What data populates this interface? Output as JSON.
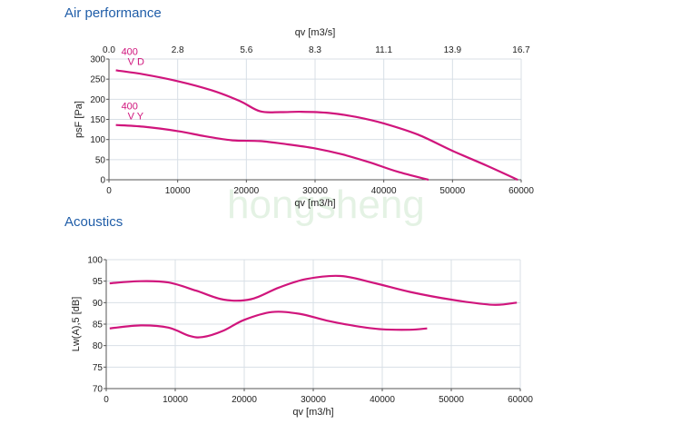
{
  "titles": {
    "air": "Air performance",
    "acoustics": "Acoustics"
  },
  "watermark": "hongsheng",
  "colors": {
    "curve": "#d0157c",
    "title": "#1f5da8",
    "grid": "#d8dfe6"
  },
  "chart_data": [
    {
      "type": "line",
      "xlabel": "qv [m3/h]",
      "x2label": "qv [m3/s]",
      "ylabel": "psF [Pa]",
      "xlim": [
        0,
        60000
      ],
      "ylim": [
        0,
        300
      ],
      "xticks": [
        "0",
        "10000",
        "20000",
        "30000",
        "40000",
        "50000",
        "60000"
      ],
      "x2ticks": [
        "0.0",
        "2.8",
        "5.6",
        "8.3",
        "11.1",
        "13.9",
        "16.7"
      ],
      "yticks": [
        "0",
        "50",
        "100",
        "150",
        "200",
        "250",
        "300"
      ],
      "grid": true,
      "series": [
        {
          "name": "400 V D",
          "label_lines": [
            "400",
            "V D"
          ],
          "x": [
            1000,
            5000,
            10000,
            15000,
            19000,
            22000,
            25000,
            28000,
            32000,
            36000,
            40000,
            45000,
            50000,
            55000,
            59500
          ],
          "y": [
            272,
            262,
            245,
            222,
            196,
            170,
            168,
            169,
            166,
            156,
            140,
            112,
            72,
            35,
            0
          ]
        },
        {
          "name": "400 V Y",
          "label_lines": [
            "400",
            "V Y"
          ],
          "x": [
            1000,
            5000,
            10000,
            14000,
            18000,
            22000,
            26000,
            30000,
            34000,
            38000,
            42000,
            46500
          ],
          "y": [
            136,
            132,
            121,
            108,
            98,
            96,
            88,
            78,
            63,
            43,
            20,
            0
          ]
        }
      ]
    },
    {
      "type": "line",
      "xlabel": "qv [m3/h]",
      "ylabel": "Lw(A),5 [dB]",
      "xlim": [
        0,
        60000
      ],
      "ylim": [
        70,
        100
      ],
      "xticks": [
        "0",
        "10000",
        "20000",
        "30000",
        "40000",
        "50000",
        "60000"
      ],
      "yticks": [
        "70",
        "75",
        "80",
        "85",
        "90",
        "95",
        "100"
      ],
      "grid": true,
      "series": [
        {
          "name": "",
          "x": [
            500,
            5000,
            9000,
            13000,
            17000,
            21000,
            25000,
            29000,
            34000,
            39000,
            44000,
            50000,
            56000,
            59500
          ],
          "y": [
            94.5,
            95.0,
            94.7,
            92.8,
            90.7,
            90.8,
            93.5,
            95.5,
            96.2,
            94.5,
            92.5,
            90.7,
            89.5,
            90.0
          ]
        },
        {
          "name": "",
          "x": [
            500,
            5000,
            9000,
            12000,
            14000,
            17000,
            20000,
            24000,
            28000,
            32000,
            36000,
            40000,
            44000,
            46500
          ],
          "y": [
            84.0,
            84.7,
            84.2,
            82.3,
            82.0,
            83.5,
            86.0,
            87.8,
            87.4,
            85.8,
            84.6,
            83.8,
            83.7,
            84.0
          ]
        }
      ]
    }
  ]
}
